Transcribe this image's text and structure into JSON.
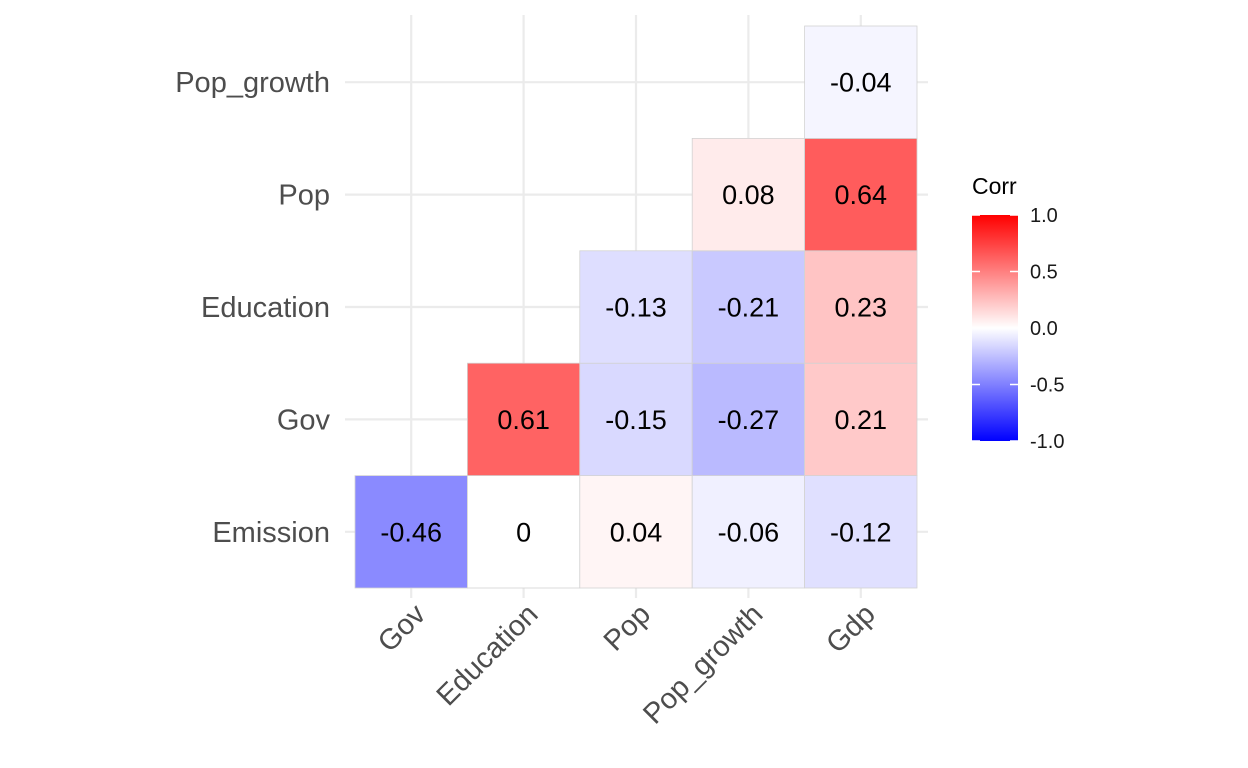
{
  "chart_data": {
    "type": "heatmap",
    "title": "",
    "x_categories": [
      "Gov",
      "Education",
      "Pop",
      "Pop_growth",
      "Gdp"
    ],
    "y_categories": [
      "Emission",
      "Gov",
      "Education",
      "Pop",
      "Pop_growth"
    ],
    "cells": [
      {
        "x": "Gov",
        "y": "Emission",
        "value": -0.46,
        "label": "-0.46"
      },
      {
        "x": "Education",
        "y": "Emission",
        "value": 0,
        "label": "0"
      },
      {
        "x": "Pop",
        "y": "Emission",
        "value": 0.04,
        "label": "0.04"
      },
      {
        "x": "Pop_growth",
        "y": "Emission",
        "value": -0.06,
        "label": "-0.06"
      },
      {
        "x": "Gdp",
        "y": "Emission",
        "value": -0.12,
        "label": "-0.12"
      },
      {
        "x": "Education",
        "y": "Gov",
        "value": 0.61,
        "label": "0.61"
      },
      {
        "x": "Pop",
        "y": "Gov",
        "value": -0.15,
        "label": "-0.15"
      },
      {
        "x": "Pop_growth",
        "y": "Gov",
        "value": -0.27,
        "label": "-0.27"
      },
      {
        "x": "Gdp",
        "y": "Gov",
        "value": 0.21,
        "label": "0.21"
      },
      {
        "x": "Pop",
        "y": "Education",
        "value": -0.13,
        "label": "-0.13"
      },
      {
        "x": "Pop_growth",
        "y": "Education",
        "value": -0.21,
        "label": "-0.21"
      },
      {
        "x": "Gdp",
        "y": "Education",
        "value": 0.23,
        "label": "0.23"
      },
      {
        "x": "Pop_growth",
        "y": "Pop",
        "value": 0.08,
        "label": "0.08"
      },
      {
        "x": "Gdp",
        "y": "Pop",
        "value": 0.64,
        "label": "0.64"
      },
      {
        "x": "Gdp",
        "y": "Pop_growth",
        "value": -0.04,
        "label": "-0.04"
      }
    ],
    "legend": {
      "title": "Corr",
      "position": "right",
      "range": [
        -1.0,
        1.0
      ],
      "ticks": [
        1.0,
        0.5,
        0.0,
        -0.5,
        -1.0
      ],
      "tick_labels": [
        "1.0",
        "0.5",
        "0.0",
        "-0.5",
        "-1.0"
      ],
      "colors": {
        "low": "#0000ff",
        "mid": "#ffffff",
        "high": "#ff0000"
      }
    },
    "grid": true
  }
}
